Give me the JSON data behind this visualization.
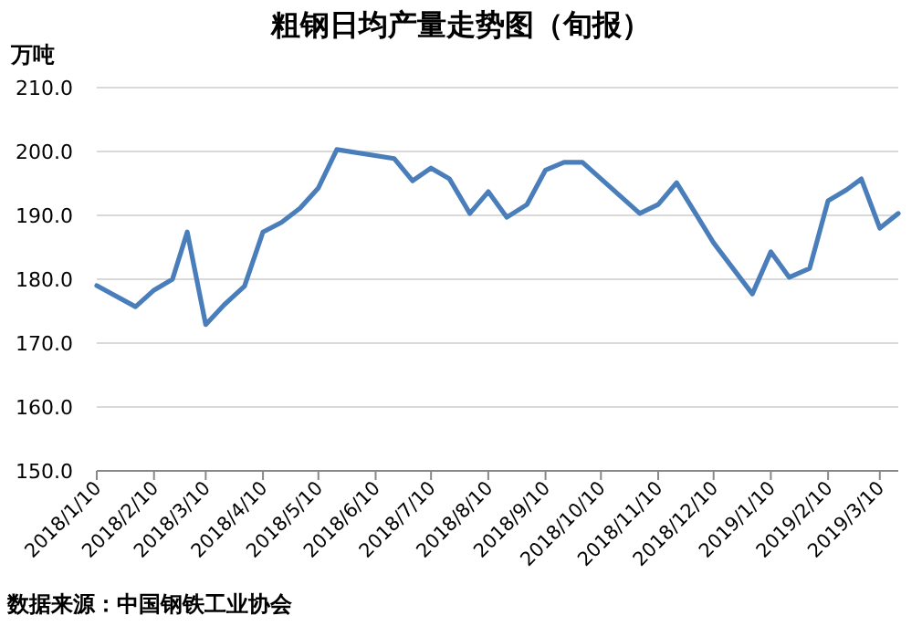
{
  "chart_data": {
    "type": "line",
    "title": "粗钢日均产量走势图（旬报）",
    "ylabel": "万吨",
    "x": [
      "2018-01-10",
      "2018-01-31",
      "2018-02-10",
      "2018-02-20",
      "2018-02-28",
      "2018-03-10",
      "2018-03-20",
      "2018-03-31",
      "2018-04-10",
      "2018-04-20",
      "2018-04-30",
      "2018-05-10",
      "2018-05-20",
      "2018-06-20",
      "2018-06-30",
      "2018-07-10",
      "2018-07-20",
      "2018-07-31",
      "2018-08-10",
      "2018-08-20",
      "2018-08-31",
      "2018-09-10",
      "2018-09-20",
      "2018-09-30",
      "2018-10-31",
      "2018-11-10",
      "2018-11-20",
      "2018-12-10",
      "2018-12-31",
      "2019-01-10",
      "2019-01-20",
      "2019-01-31",
      "2019-02-10",
      "2019-02-20",
      "2019-02-28",
      "2019-03-10",
      "2019-03-20"
    ],
    "series": [
      {
        "color": "#4a7ebb",
        "values": [
          179.0,
          175.7,
          178.3,
          180.0,
          187.4,
          172.9,
          176.0,
          178.9,
          187.4,
          188.9,
          191.1,
          194.3,
          200.3,
          198.9,
          195.4,
          197.4,
          195.7,
          190.3,
          193.7,
          189.7,
          191.7,
          197.1,
          198.3,
          198.3,
          190.3,
          191.7,
          195.1,
          185.7,
          177.7,
          184.3,
          180.3,
          181.7,
          192.3,
          194.0,
          195.7,
          188.0,
          190.3
        ]
      }
    ],
    "xlim": [
      "2018-01-10",
      "2019-03-20"
    ],
    "xticks": [
      {
        "value": "2018-01-10",
        "label": "2018/1/10"
      },
      {
        "value": "2018-02-10",
        "label": "2018/2/10"
      },
      {
        "value": "2018-03-10",
        "label": "2018/3/10"
      },
      {
        "value": "2018-04-10",
        "label": "2018/4/10"
      },
      {
        "value": "2018-05-10",
        "label": "2018/5/10"
      },
      {
        "value": "2018-06-10",
        "label": "2018/6/10"
      },
      {
        "value": "2018-07-10",
        "label": "2018/7/10"
      },
      {
        "value": "2018-08-10",
        "label": "2018/8/10"
      },
      {
        "value": "2018-09-10",
        "label": "2018/9/10"
      },
      {
        "value": "2018-10-10",
        "label": "2018/10/10"
      },
      {
        "value": "2018-11-10",
        "label": "2018/11/10"
      },
      {
        "value": "2018-12-10",
        "label": "2018/12/10"
      },
      {
        "value": "2019-01-10",
        "label": "2019/1/10"
      },
      {
        "value": "2019-02-10",
        "label": "2019/2/10"
      },
      {
        "value": "2019-03-10",
        "label": "2019/3/10"
      }
    ],
    "ylim": [
      150,
      210
    ],
    "yticks": [
      {
        "value": 150,
        "label": "150.0"
      },
      {
        "value": 160,
        "label": "160.0"
      },
      {
        "value": 170,
        "label": "170.0"
      },
      {
        "value": 180,
        "label": "180.0"
      },
      {
        "value": 190,
        "label": "190.0"
      },
      {
        "value": 200,
        "label": "200.0"
      },
      {
        "value": 210,
        "label": "210.0"
      }
    ],
    "grid": "y",
    "marker": "none",
    "line_style": "solid",
    "annotations": [
      "数据来源：中国钢铁工业协会"
    ]
  }
}
